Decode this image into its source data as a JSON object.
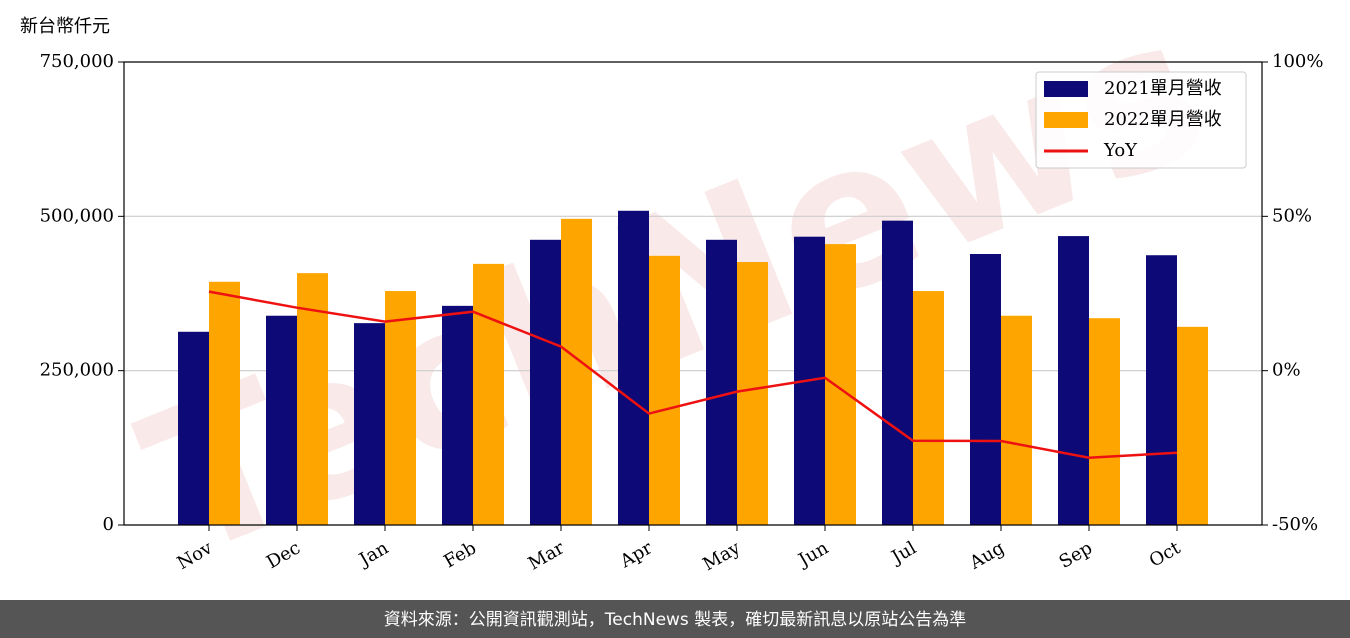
{
  "chart_data": {
    "type": "bar_line",
    "y_axis_unit": "新台幣仟元",
    "watermark": "TechNews",
    "footer": "資料來源：公開資訊觀測站，TechNews 製表，確切最新訊息以原站公告為準",
    "categories": [
      "Nov",
      "Dec",
      "Jan",
      "Feb",
      "Mar",
      "Apr",
      "May",
      "Jun",
      "Jul",
      "Aug",
      "Sep",
      "Oct"
    ],
    "series": [
      {
        "name": "2021單月營收",
        "type": "bar",
        "color": "#0d0a78",
        "values": [
          313000,
          339000,
          327000,
          355000,
          462000,
          509000,
          462000,
          467000,
          493000,
          439000,
          468000,
          437000
        ]
      },
      {
        "name": "2022單月營收",
        "type": "bar",
        "color": "#ffa500",
        "values": [
          394000,
          408000,
          379000,
          423000,
          496000,
          436000,
          426000,
          455000,
          379000,
          339000,
          335000,
          321000
        ]
      },
      {
        "name": "YoY",
        "type": "line",
        "axis": "y2",
        "color": "#ee1111",
        "values": [
          25.6,
          20.4,
          15.9,
          19.1,
          7.8,
          -13.9,
          -6.8,
          -2.3,
          -22.7,
          -22.8,
          -28.2,
          -26.6
        ]
      }
    ],
    "ylim": [
      0,
      750000
    ],
    "yticks": [
      0,
      {
        "value": 250000,
        "label": "250,000"
      },
      {
        "value": 500000,
        "label": "500,000"
      },
      {
        "value": 750000,
        "label": "750,000"
      }
    ],
    "y2lim": [
      -50,
      100
    ],
    "y2ticks": [
      {
        "value": -50,
        "label": "-50%"
      },
      {
        "value": 0,
        "label": "0%"
      },
      {
        "value": 50,
        "label": "50%"
      },
      {
        "value": 100,
        "label": "100%"
      }
    ],
    "grid": true,
    "legend": "upper right"
  }
}
